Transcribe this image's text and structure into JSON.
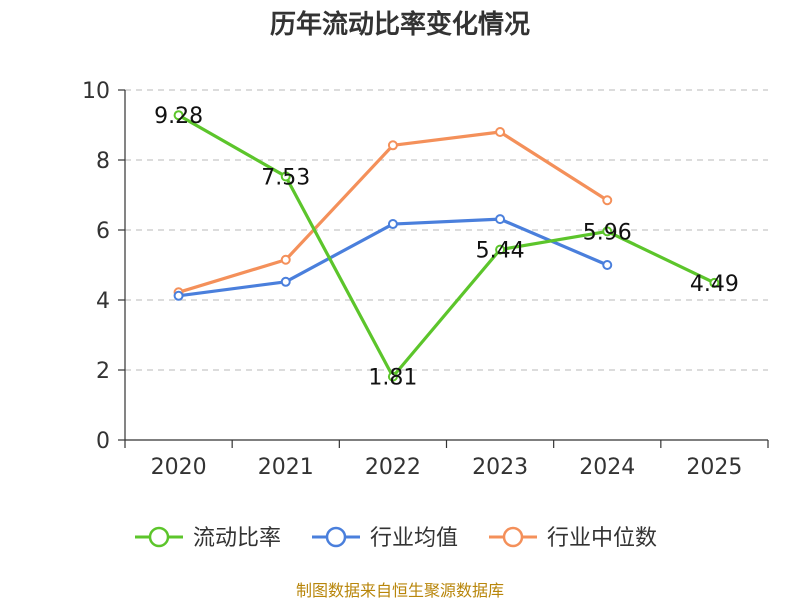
{
  "chart_data": {
    "type": "line",
    "title": "历年流动比率变化情况",
    "categories": [
      "2020",
      "2021",
      "2022",
      "2023",
      "2024",
      "2025"
    ],
    "ylim": [
      0,
      10
    ],
    "yticks": [
      0,
      2,
      4,
      6,
      8,
      10
    ],
    "grid": "horizontal-dashed",
    "legend_position": "bottom",
    "series": [
      {
        "name": "流动比率",
        "color": "#5cc52b",
        "values": [
          9.28,
          7.53,
          1.81,
          5.44,
          5.96,
          4.49
        ],
        "labels": [
          "9.28",
          "7.53",
          "1.81",
          "5.44",
          "5.96",
          "4.49"
        ]
      },
      {
        "name": "行业均值",
        "color": "#4a7fdc",
        "values": [
          4.12,
          4.52,
          6.17,
          6.31,
          5.0,
          null
        ]
      },
      {
        "name": "行业中位数",
        "color": "#f4905a",
        "values": [
          4.22,
          5.15,
          8.42,
          8.8,
          6.85,
          null
        ]
      }
    ]
  },
  "footer": {
    "source": "制图数据来自恒生聚源数据库"
  }
}
